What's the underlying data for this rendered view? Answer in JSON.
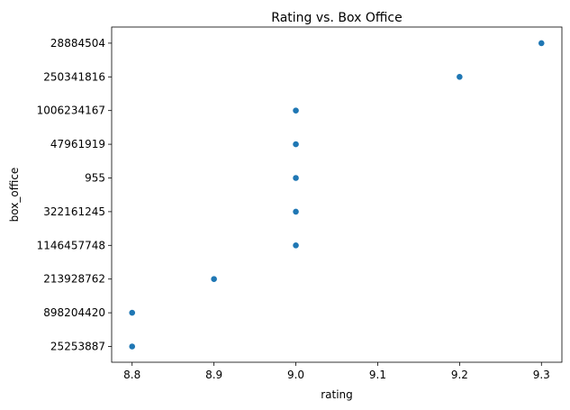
{
  "chart_data": {
    "type": "scatter",
    "title": "Rating vs. Box Office",
    "xlabel": "rating",
    "ylabel": "box_office",
    "x_ticks": [
      "8.8",
      "8.9",
      "9.0",
      "9.1",
      "9.2",
      "9.3"
    ],
    "x_tick_values": [
      8.8,
      8.9,
      9.0,
      9.1,
      9.2,
      9.3
    ],
    "xlim": [
      8.775,
      9.325
    ],
    "y_axis_type": "categorical",
    "y_categories": [
      "25253887",
      "898204420",
      "213928762",
      "1146457748",
      "322161245",
      "955",
      "47961919",
      "1006234167",
      "250341816",
      "28884504"
    ],
    "points": [
      {
        "x": 8.8,
        "y": "25253887"
      },
      {
        "x": 8.8,
        "y": "898204420"
      },
      {
        "x": 8.9,
        "y": "213928762"
      },
      {
        "x": 9.0,
        "y": "1146457748"
      },
      {
        "x": 9.0,
        "y": "322161245"
      },
      {
        "x": 9.0,
        "y": "955"
      },
      {
        "x": 9.0,
        "y": "47961919"
      },
      {
        "x": 9.0,
        "y": "1006234167"
      },
      {
        "x": 9.2,
        "y": "250341816"
      },
      {
        "x": 9.3,
        "y": "28884504"
      }
    ],
    "marker_color": "#1f77b4",
    "grid": false,
    "legend": "none"
  }
}
